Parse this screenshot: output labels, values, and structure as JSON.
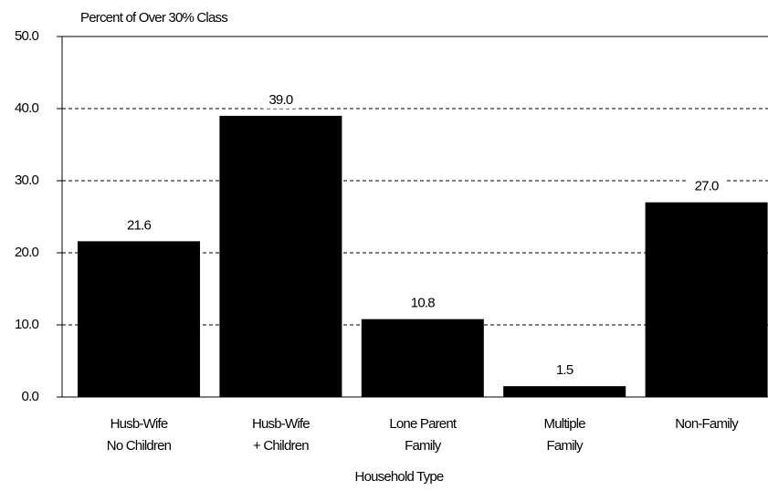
{
  "chart_data": {
    "type": "bar",
    "y_label": "Percent of Over 30% Class",
    "x_label": "Household Type",
    "categories": [
      [
        "Husb-Wife",
        "No Children"
      ],
      [
        "Husb-Wife",
        "+ Children"
      ],
      [
        "Lone Parent",
        "Family"
      ],
      [
        "Multiple",
        "Family"
      ],
      [
        "Non-Family"
      ]
    ],
    "values": [
      21.6,
      39.0,
      10.8,
      1.5,
      27.0
    ],
    "value_labels": [
      "21.6",
      "39.0",
      "10.8",
      "1.5",
      "27.0"
    ],
    "color": "#000000",
    "ylim": [
      0,
      50
    ],
    "yticks": [
      {
        "value": 0,
        "label": "0.0"
      },
      {
        "value": 10,
        "label": "10.0"
      },
      {
        "value": 20,
        "label": "20.0"
      },
      {
        "value": 30,
        "label": "30.0"
      },
      {
        "value": 40,
        "label": "40.0"
      },
      {
        "value": 50,
        "label": "50.0"
      }
    ],
    "grid": true
  }
}
